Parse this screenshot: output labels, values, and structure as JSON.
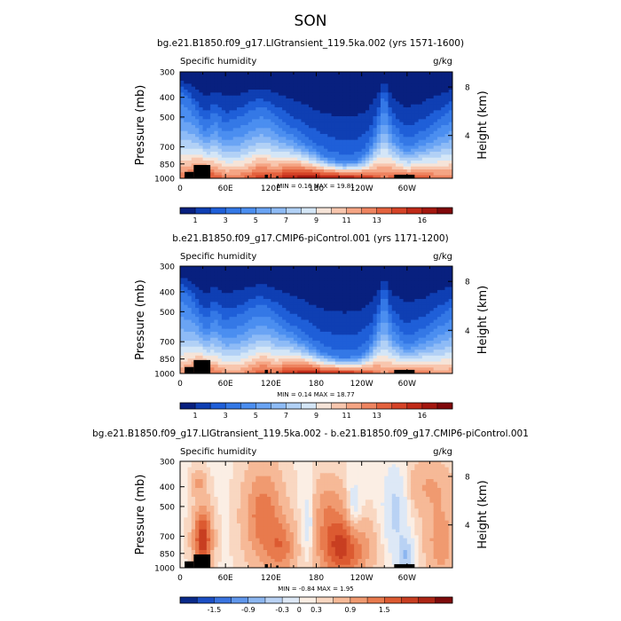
{
  "figure_title": "SON",
  "panels": [
    {
      "title": "bg.e21.B1850.f09_g17.LIGtransient_119.5ka.002 (yrs 1571-1600)",
      "variable": "Specific humidity",
      "units": "g/kg",
      "minmax": "MIN =    0.16   MAX =   19.81"
    },
    {
      "title": "b.e21.B1850.f09_g17.CMIP6-piControl.001 (yrs 1171-1200)",
      "variable": "Specific humidity",
      "units": "g/kg",
      "minmax": "MIN =    0.14   MAX =   18.77"
    },
    {
      "title": "bg.e21.B1850.f09_g17.LIGtransient_119.5ka.002 - b.e21.B1850.f09_g17.CMIP6-piControl.001",
      "variable": "Specific humidity",
      "units": "g/kg",
      "minmax": "MIN =   -0.84   MAX =    1.95"
    }
  ],
  "chart_data": {
    "type": "heatmap",
    "x_ticks": [
      "0",
      "60E",
      "120E",
      "180",
      "120W",
      "60W"
    ],
    "x_tick_lon": [
      0,
      60,
      120,
      180,
      240,
      300
    ],
    "xlim": [
      0,
      360
    ],
    "left_axis_label": "Pressure (mb)",
    "left_ticks": [
      "300",
      "400",
      "500",
      "700",
      "850",
      "1000"
    ],
    "left_tick_values": [
      300,
      400,
      500,
      700,
      850,
      1000
    ],
    "ylim": [
      1000,
      300
    ],
    "y_scale": "log-pressure",
    "right_axis_label": "Height (km)",
    "right_ticks": [
      "8",
      "4"
    ],
    "right_tick_values": [
      8,
      4
    ],
    "absolute_colorbar": {
      "levels_count": 18,
      "tick_labels": [
        "1",
        "3",
        "5",
        "7",
        "9",
        "11",
        "13",
        "16"
      ],
      "tick_index": [
        1,
        3,
        5,
        7,
        9,
        11,
        13,
        16
      ],
      "colors": [
        "#08207f",
        "#0f3fb3",
        "#1f5fd8",
        "#3478e6",
        "#4b8ef0",
        "#6aa4f4",
        "#8ebbf6",
        "#b2d1f6",
        "#d4e6f7",
        "#f6e4d8",
        "#f8c6ae",
        "#f5a584",
        "#ee8460",
        "#e4623e",
        "#d54327",
        "#c02a18",
        "#a4170f",
        "#80080a"
      ]
    },
    "difference_colorbar": {
      "levels_count": 16,
      "tick_labels": [
        "-1.5",
        "-0.9",
        "-0.3",
        "0",
        "0.3",
        "0.9",
        "1.5"
      ],
      "tick_index": [
        2,
        4,
        6,
        7,
        8,
        10,
        12
      ],
      "colors": [
        "#0a2a8a",
        "#1c4fc4",
        "#3a74e0",
        "#6097ec",
        "#8cb6f0",
        "#b9d2f4",
        "#dde8f6",
        "#fbeee4",
        "#f9d7c1",
        "#f6b997",
        "#f09a70",
        "#e87a4d",
        "#dc5a31",
        "#c83e21",
        "#ad2515",
        "#7e0b0b"
      ]
    },
    "series": [
      {
        "name": "bg.e21.B1850.f09_g17.LIGtransient_119.5ka.002",
        "min": 0.16,
        "max": 19.81,
        "profile_lon": [
          0,
          15,
          25,
          35,
          45,
          60,
          80,
          95,
          105,
          115,
          125,
          140,
          165,
          190,
          215,
          235,
          250,
          262,
          270,
          280,
          300,
          320,
          340,
          360
        ],
        "profile_topP": [
          380,
          430,
          500,
          560,
          480,
          560,
          520,
          480,
          460,
          470,
          500,
          560,
          650,
          760,
          820,
          800,
          700,
          520,
          380,
          560,
          680,
          620,
          540,
          470
        ],
        "profile_surfQ": [
          13,
          14,
          16,
          15,
          14,
          13,
          13,
          14,
          15,
          15,
          14,
          16,
          17,
          17,
          17,
          16,
          15,
          14,
          13,
          14,
          14,
          14,
          13,
          13
        ]
      },
      {
        "name": "b.e21.B1850.f09_g17.CMIP6-piControl.001",
        "min": 0.14,
        "max": 18.77,
        "profile_lon": [
          0,
          15,
          25,
          35,
          45,
          60,
          80,
          95,
          105,
          115,
          125,
          140,
          165,
          190,
          215,
          235,
          250,
          262,
          270,
          280,
          300,
          320,
          340,
          360
        ],
        "profile_topP": [
          390,
          440,
          520,
          580,
          500,
          580,
          540,
          500,
          480,
          490,
          520,
          580,
          670,
          780,
          830,
          810,
          720,
          540,
          400,
          580,
          700,
          640,
          560,
          490
        ],
        "profile_surfQ": [
          12,
          13,
          15,
          14,
          13,
          12,
          12,
          13,
          14,
          14,
          13,
          15,
          16,
          16,
          16,
          15,
          14,
          13,
          12,
          13,
          13,
          13,
          12,
          12
        ]
      },
      {
        "name": "difference",
        "min": -0.84,
        "max": 1.95,
        "anomalies": [
          {
            "lon": 30,
            "p": 720,
            "a": 1.6,
            "sx": 12,
            "sy": 0.35
          },
          {
            "lon": 25,
            "p": 380,
            "a": 0.5,
            "sx": 10,
            "sy": 0.15
          },
          {
            "lon": 110,
            "p": 560,
            "a": 1.0,
            "sx": 25,
            "sy": 0.55
          },
          {
            "lon": 135,
            "p": 800,
            "a": 0.8,
            "sx": 18,
            "sy": 0.3
          },
          {
            "lon": 215,
            "p": 800,
            "a": 1.5,
            "sx": 32,
            "sy": 0.35
          },
          {
            "lon": 195,
            "p": 500,
            "a": 0.6,
            "sx": 25,
            "sy": 0.35
          },
          {
            "lon": 170,
            "p": 600,
            "a": -0.5,
            "sx": 10,
            "sy": 0.4
          },
          {
            "lon": 230,
            "p": 550,
            "a": -0.5,
            "sx": 10,
            "sy": 0.35
          },
          {
            "lon": 285,
            "p": 520,
            "a": -0.55,
            "sx": 15,
            "sy": 0.45
          },
          {
            "lon": 298,
            "p": 870,
            "a": -0.7,
            "sx": 10,
            "sy": 0.2
          },
          {
            "lon": 330,
            "p": 400,
            "a": 0.5,
            "sx": 30,
            "sy": 0.3
          },
          {
            "lon": 345,
            "p": 750,
            "a": 0.7,
            "sx": 20,
            "sy": 0.4
          }
        ]
      }
    ],
    "topography": {
      "segments": [
        {
          "lon": [
            6,
            18
          ],
          "from_p": 930
        },
        {
          "lon": [
            18,
            40
          ],
          "from_p": 860
        },
        {
          "lon": [
            112,
            116
          ],
          "from_p": 960
        },
        {
          "lon": [
            127,
            130
          ],
          "from_p": 975
        },
        {
          "lon": [
            283,
            310
          ],
          "from_p": 960
        }
      ]
    }
  }
}
